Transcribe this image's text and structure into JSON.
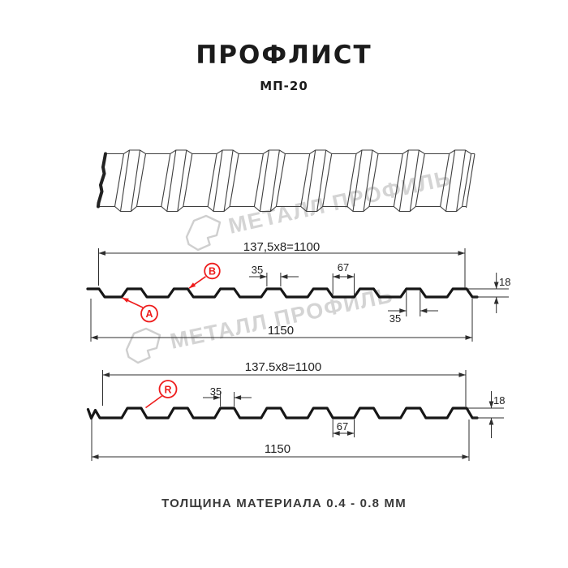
{
  "header": {
    "title": "ПРОФЛИСТ",
    "subtitle": "МП-20"
  },
  "watermark": {
    "text": "МЕТАЛЛ ПРОФИЛЬ",
    "color": "#d4d4d4",
    "logo_icon": "metall-profil-logo"
  },
  "sections": [
    {
      "id": "profile-section-ab",
      "labels": [
        {
          "id": "A"
        },
        {
          "id": "B"
        }
      ],
      "dims": {
        "module": "137,5x8=1100",
        "rib_top": "35",
        "valley": "67",
        "height": "18",
        "rib_top_below": "35",
        "overall": "1150"
      }
    },
    {
      "id": "profile-section-r",
      "labels": [
        {
          "id": "R"
        }
      ],
      "dims": {
        "module": "137.5x8=1100",
        "rib_top": "35",
        "valley": "67",
        "height": "18",
        "overall": "1150"
      }
    }
  ],
  "footer": {
    "text": "ТОЛЩИНА МАТЕРИАЛА 0.4 - 0.8 ММ"
  },
  "colors": {
    "accent_red": "#ee1c1c",
    "line": "#1a1a1a",
    "watermark": "#d4d4d4"
  }
}
